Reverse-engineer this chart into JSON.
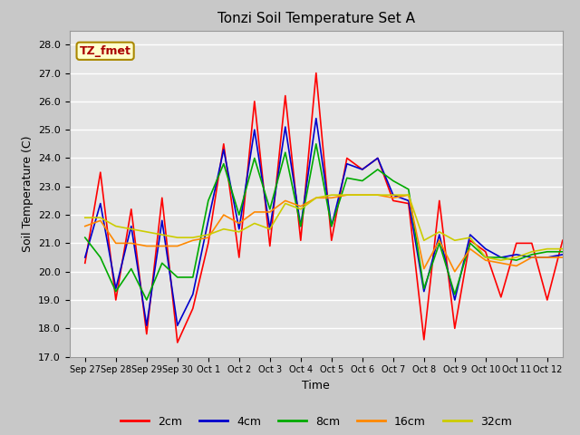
{
  "title": "Tonzi Soil Temperature Set A",
  "xlabel": "Time",
  "ylabel": "Soil Temperature (C)",
  "ylim": [
    17.0,
    28.5
  ],
  "yticks": [
    17.0,
    18.0,
    19.0,
    20.0,
    21.0,
    22.0,
    23.0,
    24.0,
    25.0,
    26.0,
    27.0,
    28.0
  ],
  "xtick_labels": [
    "Sep 27",
    "Sep 28",
    "Sep 29",
    "Sep 30",
    "Oct 1",
    "Oct 2",
    "Oct 3",
    "Oct 4",
    "Oct 5",
    "Oct 6",
    "Oct 7",
    "Oct 8",
    "Oct 9",
    "Oct 10",
    "Oct 11",
    "Oct 12"
  ],
  "annotation_text": "TZ_fmet",
  "annotation_bg": "#ffffcc",
  "annotation_border": "#aa8800",
  "annotation_text_color": "#aa0000",
  "series_colors": [
    "#ff0000",
    "#0000cc",
    "#00aa00",
    "#ff8800",
    "#cccc00"
  ],
  "series_labels": [
    "2cm",
    "4cm",
    "8cm",
    "16cm",
    "32cm"
  ],
  "bg_color": "#e5e5e5",
  "x": [
    0,
    1,
    2,
    3,
    4,
    5,
    6,
    7,
    8,
    9,
    10,
    11,
    12,
    13,
    14,
    15,
    16,
    17,
    18,
    19,
    20,
    21,
    22,
    23,
    24,
    25,
    26,
    27,
    28,
    29,
    30,
    31
  ],
  "y_2cm": [
    20.3,
    23.5,
    19.0,
    22.2,
    17.8,
    22.6,
    17.5,
    18.7,
    21.0,
    24.5,
    20.5,
    26.0,
    20.9,
    26.2,
    21.1,
    27.0,
    21.1,
    24.0,
    23.6,
    24.0,
    22.5,
    22.4,
    17.6,
    22.5,
    18.0,
    21.1,
    20.7,
    19.1,
    21.0,
    21.0,
    19.0,
    21.1
  ],
  "y_4cm": [
    20.5,
    22.4,
    19.4,
    21.6,
    18.1,
    21.8,
    18.1,
    19.2,
    21.8,
    24.3,
    21.5,
    25.0,
    21.5,
    25.1,
    21.6,
    25.4,
    21.6,
    23.8,
    23.6,
    24.0,
    22.7,
    22.5,
    19.3,
    21.3,
    19.0,
    21.3,
    20.8,
    20.5,
    20.6,
    20.5,
    20.5,
    20.6
  ],
  "y_8cm": [
    21.2,
    20.5,
    19.3,
    20.1,
    19.0,
    20.3,
    19.8,
    19.8,
    22.5,
    23.8,
    22.0,
    24.0,
    22.2,
    24.2,
    21.6,
    24.5,
    21.6,
    23.3,
    23.2,
    23.6,
    23.2,
    22.9,
    19.4,
    21.0,
    19.2,
    21.0,
    20.5,
    20.5,
    20.4,
    20.6,
    20.7,
    20.7
  ],
  "y_16cm": [
    21.6,
    21.8,
    21.0,
    21.0,
    20.9,
    20.9,
    20.9,
    21.1,
    21.2,
    22.0,
    21.7,
    22.1,
    22.1,
    22.5,
    22.3,
    22.6,
    22.6,
    22.7,
    22.7,
    22.7,
    22.6,
    22.7,
    20.1,
    21.1,
    20.0,
    20.8,
    20.4,
    20.3,
    20.2,
    20.5,
    20.5,
    20.5
  ],
  "y_32cm": [
    21.9,
    21.9,
    21.6,
    21.5,
    21.4,
    21.3,
    21.2,
    21.2,
    21.3,
    21.5,
    21.4,
    21.7,
    21.5,
    22.4,
    22.2,
    22.6,
    22.7,
    22.7,
    22.7,
    22.7,
    22.7,
    22.7,
    21.1,
    21.4,
    21.1,
    21.2,
    20.5,
    20.4,
    20.5,
    20.7,
    20.8,
    20.8
  ]
}
